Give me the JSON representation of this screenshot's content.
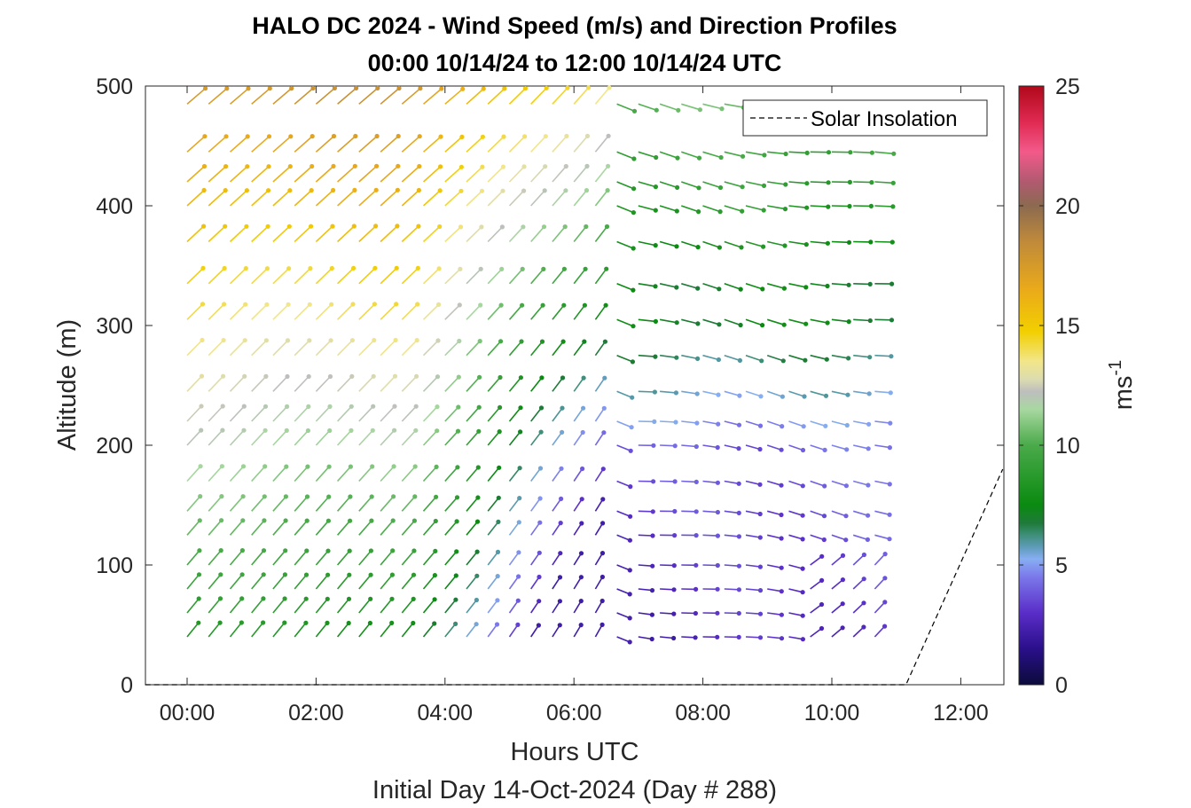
{
  "chart_data": {
    "type": "quiver",
    "title": "HALO DC 2024 - Wind Speed (m/s) and Direction Profiles",
    "subtitle": "00:00 10/14/24 to 12:00 10/14/24  UTC",
    "xlabel": "Hours UTC",
    "xlabel2": "Initial Day 14-Oct-2024 (Day # 288)",
    "ylabel": "Altitude (m)",
    "xlim_hours": [
      -0.65,
      12.65
    ],
    "ylim": [
      0,
      500
    ],
    "x_ticks": [
      0,
      2,
      4,
      6,
      8,
      10,
      12
    ],
    "x_tick_labels": [
      "00:00",
      "02:00",
      "04:00",
      "06:00",
      "08:00",
      "10:00",
      "12:00"
    ],
    "y_ticks": [
      0,
      100,
      200,
      300,
      400,
      500
    ],
    "y_tick_labels": [
      "0",
      "100",
      "200",
      "300",
      "400",
      "500"
    ],
    "colorbar": {
      "label": "ms",
      "label_exponent": "-1",
      "range": [
        0,
        25
      ],
      "ticks": [
        0,
        5,
        10,
        15,
        20,
        25
      ],
      "tick_labels": [
        "0",
        "5",
        "10",
        "15",
        "20",
        "25"
      ]
    },
    "legend": {
      "position": "top-right",
      "entries": [
        "Solar Insolation"
      ]
    },
    "altitudes_m": [
      40,
      60,
      80,
      100,
      125,
      145,
      170,
      200,
      220,
      245,
      275,
      305,
      335,
      370,
      400,
      420,
      445,
      485
    ],
    "time_start_h": 0,
    "time_step_h": 0.3333,
    "time_count": 33,
    "wind_regime_switch_h": 6.4,
    "wind_note": "speed m/s and direction vary with time and altitude",
    "solar_insolation": {
      "x_hours": [
        -0.65,
        11.15,
        12.65
      ],
      "y": [
        0,
        0,
        180
      ]
    }
  }
}
